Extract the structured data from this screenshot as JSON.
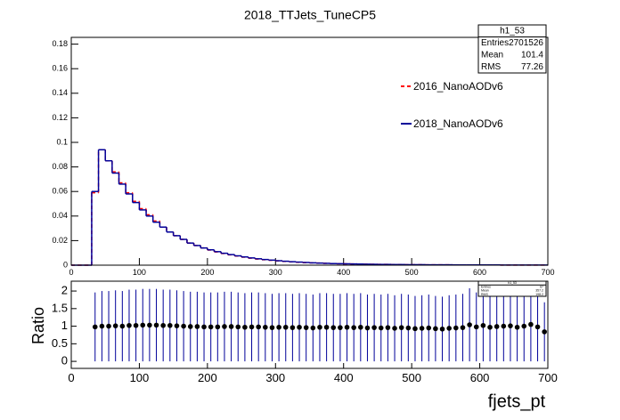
{
  "chart_data": [
    {
      "type": "histogram",
      "title": "2018_TTJets_TuneCP5",
      "bins": [
        0,
        10,
        20,
        30,
        40,
        50,
        60,
        70,
        80,
        90,
        100,
        110,
        120,
        130,
        140,
        150,
        160,
        170,
        180,
        190,
        200,
        210,
        220,
        230,
        240,
        250,
        260,
        270,
        280,
        290,
        300,
        310,
        320,
        330,
        340,
        350,
        360,
        370,
        380,
        390,
        400,
        410,
        420,
        430,
        440,
        450,
        460,
        470,
        480,
        490,
        500,
        510,
        520,
        530,
        540,
        550,
        560,
        570,
        580,
        590,
        600,
        610,
        620,
        630,
        640,
        650,
        660,
        670,
        680,
        690,
        700
      ],
      "series": [
        {
          "name": "2016_NanoAODv6",
          "color": "#ff0000",
          "dashed": true,
          "values": [
            0,
            0,
            0,
            0.059,
            0.094,
            0.085,
            0.076,
            0.067,
            0.059,
            0.052,
            0.046,
            0.041,
            0.036,
            0.031,
            0.027,
            0.024,
            0.021,
            0.018,
            0.016,
            0.014,
            0.0123,
            0.0108,
            0.0095,
            0.0084,
            0.0074,
            0.0065,
            0.0057,
            0.005,
            0.0044,
            0.004,
            0.0035,
            0.0031,
            0.0027,
            0.0024,
            0.0021,
            0.0019,
            0.0017,
            0.0015,
            0.0013,
            0.0012,
            0.0011,
            0.001,
            0.0009,
            0.0008,
            0.0007,
            0.0006,
            0.0006,
            0.0005,
            0.0005,
            0.0004,
            0.0004,
            0.0004,
            0.0003,
            0.0003,
            0.0003,
            0.0003,
            0.0002,
            0.0002,
            0.0002,
            0.0002,
            0.0002,
            0.0002,
            0.0002,
            0.0001,
            0.0001,
            0.0001,
            0.0001,
            0.0001,
            0.0001,
            0.0001
          ]
        },
        {
          "name": "2018_NanoAODv6",
          "color": "#000099",
          "dashed": false,
          "values": [
            0,
            0,
            0,
            0.06,
            0.094,
            0.085,
            0.075,
            0.066,
            0.058,
            0.051,
            0.045,
            0.04,
            0.035,
            0.031,
            0.027,
            0.024,
            0.021,
            0.018,
            0.016,
            0.014,
            0.0125,
            0.011,
            0.0097,
            0.0086,
            0.0076,
            0.0067,
            0.0059,
            0.0052,
            0.0046,
            0.0041,
            0.0036,
            0.0032,
            0.0028,
            0.0025,
            0.0022,
            0.0019,
            0.0017,
            0.0015,
            0.0013,
            0.0012,
            0.0011,
            0.001,
            0.0009,
            0.0008,
            0.0007,
            0.0006,
            0.0006,
            0.0005,
            0.0005,
            0.0004,
            0.0004,
            0.0004,
            0.0003,
            0.0003,
            0.0003,
            0.0003,
            0.0002,
            0.0002,
            0.0002,
            0.0002,
            0.0002,
            0.0002,
            0.0002,
            0.0001,
            0.0001,
            0.0001,
            0.0001,
            0.0001,
            0.0001,
            0.0001
          ]
        }
      ],
      "xlim": [
        0,
        700
      ],
      "xticks": [
        0,
        100,
        200,
        300,
        400,
        500,
        600,
        700
      ],
      "ylim": [
        0,
        0.1855
      ],
      "yticks": [
        0,
        0.02,
        0.04,
        0.06,
        0.08,
        0.1,
        0.12,
        0.14,
        0.16,
        0.18
      ],
      "stats": {
        "title": "h1_53",
        "rows": [
          [
            "Entries",
            2701526
          ],
          [
            "Mean",
            101.4
          ],
          [
            "RMS",
            77.26
          ]
        ]
      }
    },
    {
      "type": "errorbar",
      "x_label": "fjets_pt",
      "y_label": "Ratio",
      "color": "#000000",
      "bar_color": "#000099",
      "x": [
        35,
        45,
        55,
        65,
        75,
        85,
        95,
        105,
        115,
        125,
        135,
        145,
        155,
        165,
        175,
        185,
        195,
        205,
        215,
        225,
        235,
        245,
        255,
        265,
        275,
        285,
        295,
        305,
        315,
        325,
        335,
        345,
        355,
        365,
        375,
        385,
        395,
        405,
        415,
        425,
        435,
        445,
        455,
        465,
        475,
        485,
        495,
        505,
        515,
        525,
        535,
        545,
        555,
        565,
        575,
        585,
        595,
        605,
        615,
        625,
        635,
        645,
        655,
        665,
        675,
        685,
        695
      ],
      "values": [
        0.98,
        1.0,
        1.0,
        1.01,
        1.0,
        1.02,
        1.02,
        1.03,
        1.03,
        1.03,
        1.02,
        1.02,
        1.01,
        1.0,
        0.99,
        0.99,
        0.98,
        0.98,
        0.98,
        0.99,
        0.99,
        0.98,
        0.97,
        0.98,
        0.98,
        0.97,
        0.96,
        0.97,
        0.97,
        0.96,
        0.97,
        0.96,
        0.95,
        0.97,
        0.97,
        0.96,
        0.96,
        0.97,
        0.96,
        0.97,
        0.95,
        0.96,
        0.95,
        0.96,
        0.94,
        0.96,
        0.95,
        0.93,
        0.94,
        0.95,
        0.93,
        0.92,
        0.94,
        0.95,
        0.96,
        1.04,
        0.98,
        1.02,
        0.97,
        0.99,
        1.0,
        1.01,
        0.97,
        1.0,
        1.05,
        0.98,
        0.84
      ],
      "errors": [
        0.98,
        1.0,
        1.0,
        1.01,
        1.0,
        1.02,
        1.02,
        1.03,
        1.03,
        1.03,
        1.02,
        1.02,
        1.01,
        1.0,
        0.99,
        0.99,
        0.98,
        0.98,
        0.98,
        0.99,
        0.99,
        0.98,
        0.97,
        0.98,
        0.98,
        0.97,
        0.96,
        0.97,
        0.97,
        0.96,
        0.97,
        0.96,
        0.95,
        0.97,
        0.97,
        0.96,
        0.96,
        0.97,
        0.96,
        0.97,
        0.95,
        0.96,
        0.95,
        0.96,
        0.94,
        0.96,
        0.95,
        0.93,
        0.94,
        0.95,
        0.93,
        0.92,
        0.94,
        0.95,
        0.96,
        1.04,
        0.98,
        1.02,
        0.97,
        0.99,
        1.0,
        1.01,
        0.97,
        1.0,
        1.05,
        0.98,
        0.84
      ],
      "xlim": [
        0,
        700
      ],
      "xticks": [
        0,
        100,
        200,
        300,
        400,
        500,
        600,
        700
      ],
      "ylim": [
        -0.2,
        2.28
      ],
      "yticks": [
        0,
        0.5,
        1,
        1.5,
        2
      ],
      "stats": {
        "title": "h1_53",
        "rows": [
          [
            "Entries",
            67
          ],
          [
            "Mean",
            357.2
          ],
          [
            "RMS",
            198.2
          ]
        ]
      }
    }
  ]
}
